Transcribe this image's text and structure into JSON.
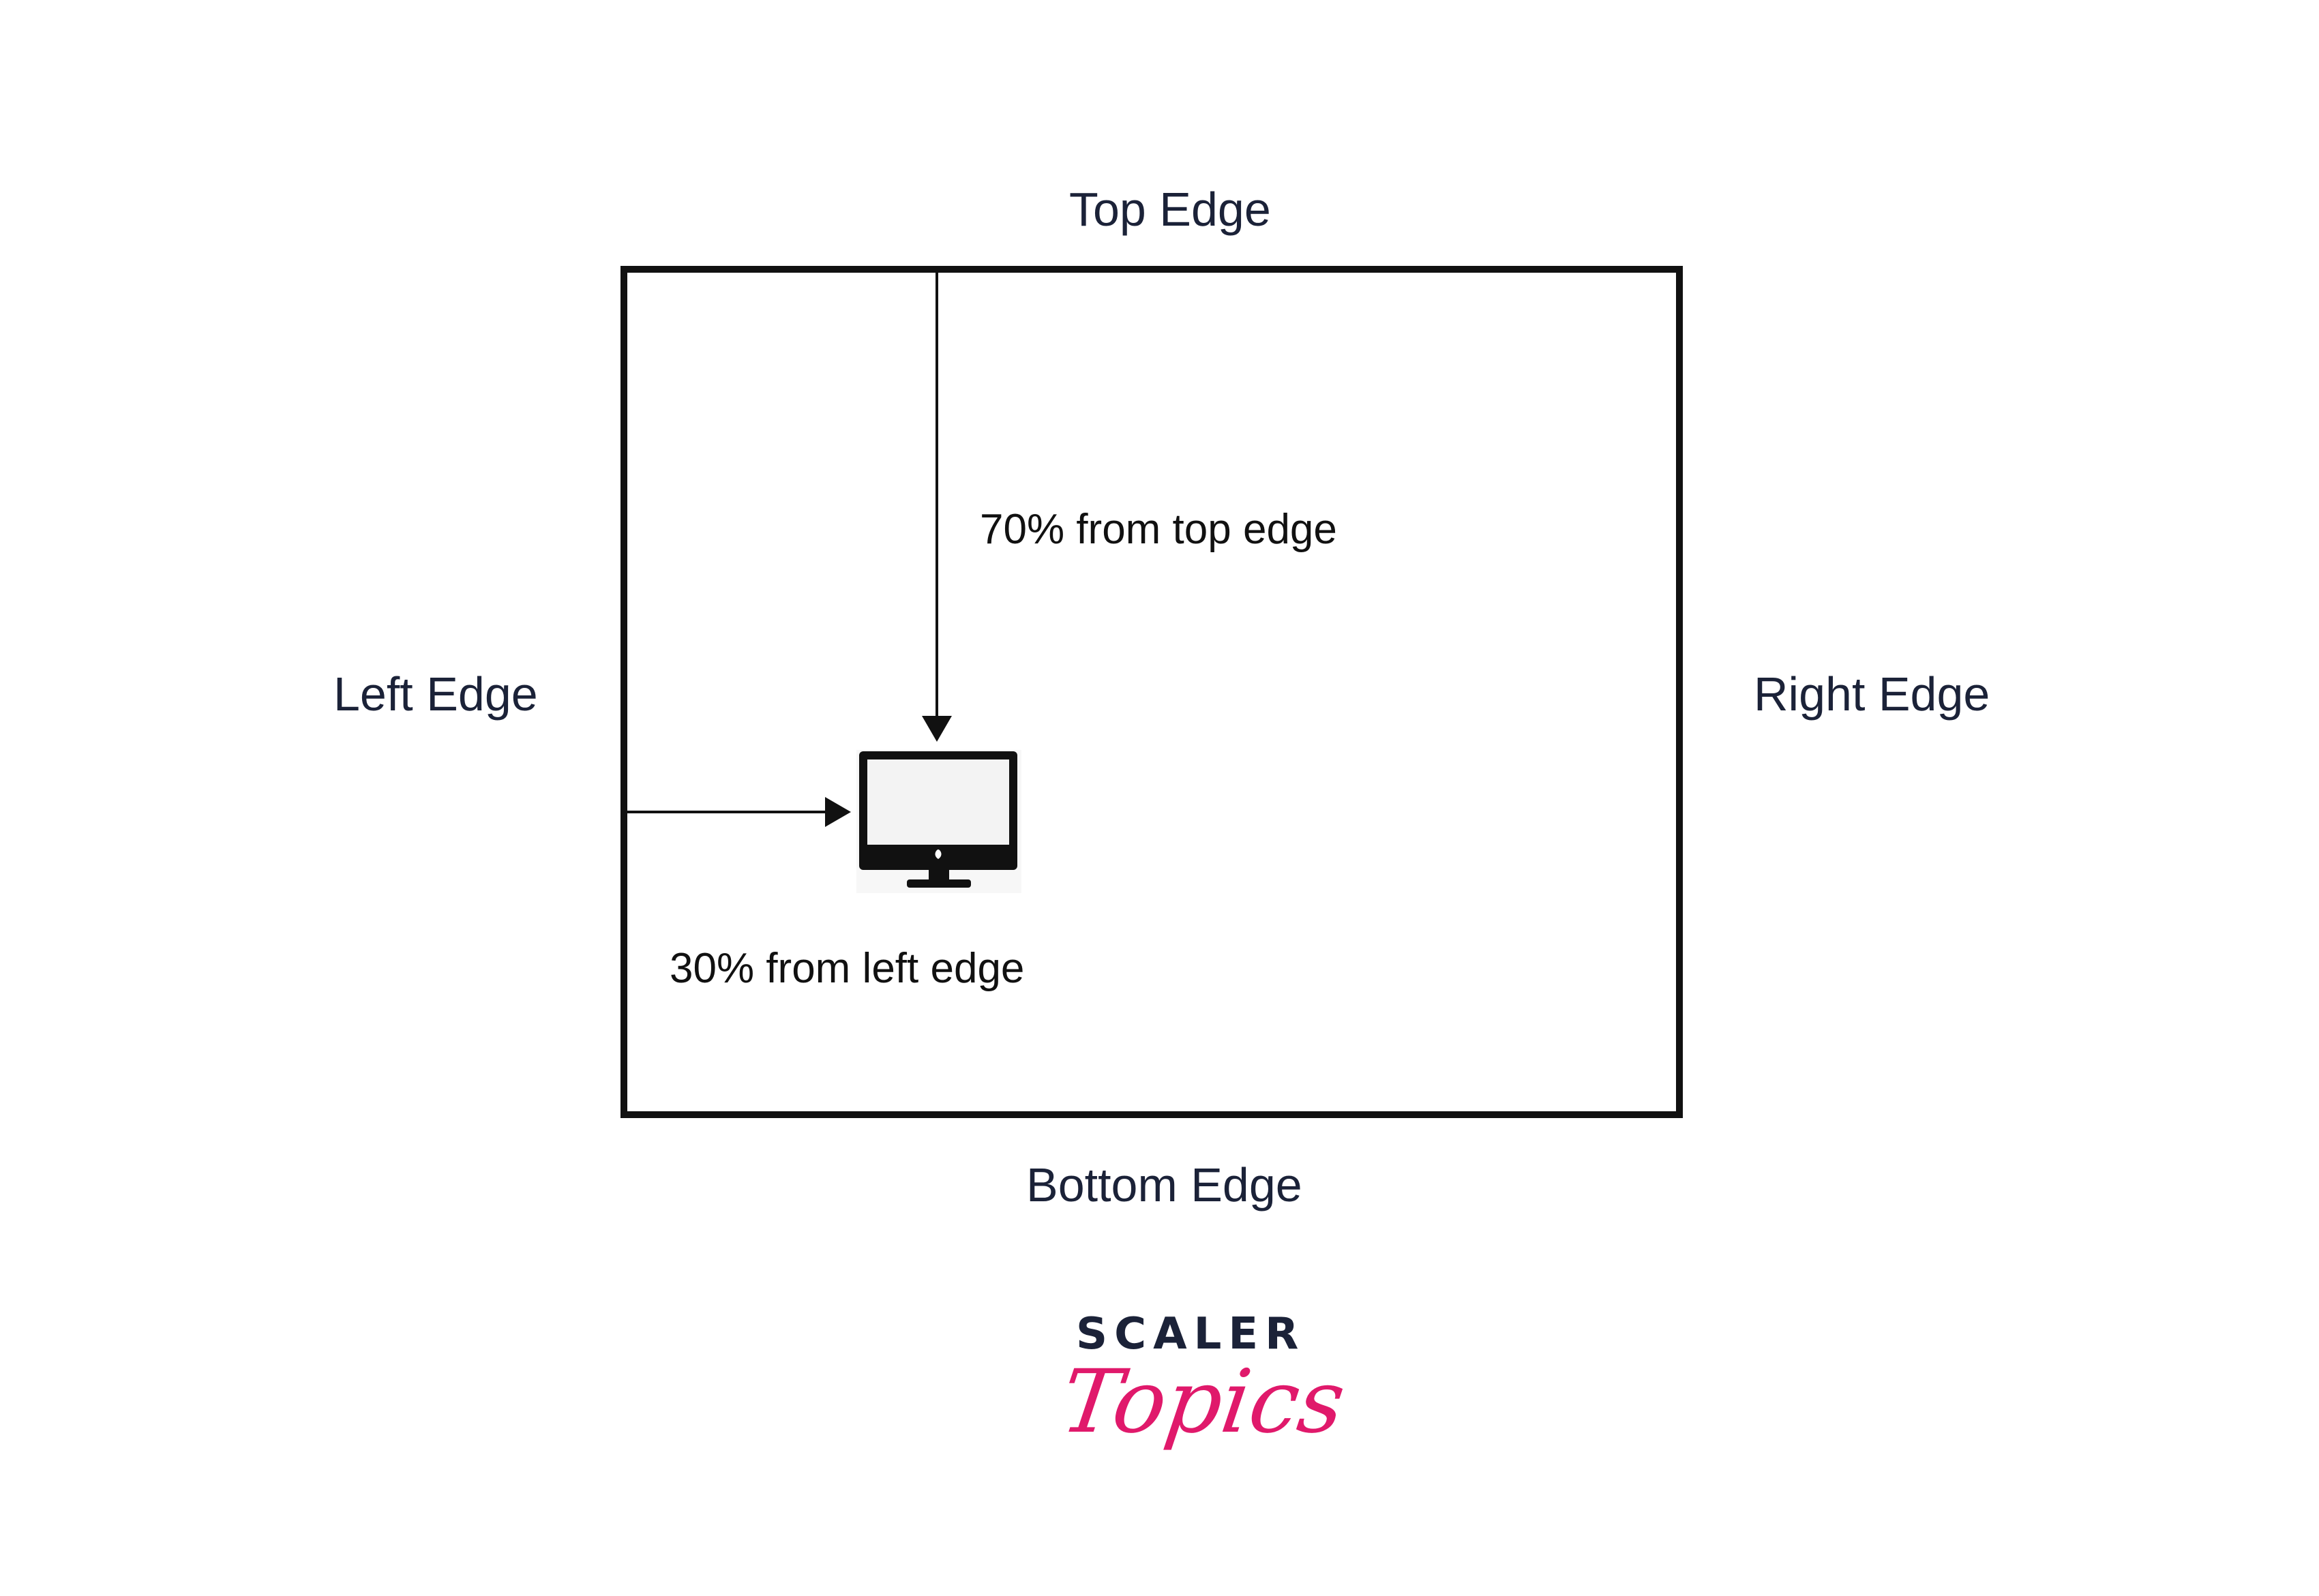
{
  "labels": {
    "top_edge": "Top Edge",
    "left_edge": "Left Edge",
    "right_edge": "Right Edge",
    "bottom_edge": "Bottom Edge",
    "top_annotation": "70% from top edge",
    "left_annotation": "30% from left edge"
  },
  "icons": {
    "device": "desktop-monitor-icon"
  },
  "logo": {
    "word": "SCALER",
    "script": "Topics",
    "colors": {
      "word": "#1b2238",
      "script": "#e0196b"
    }
  },
  "colors": {
    "text": "#1b2238",
    "stroke": "#111111",
    "screen": "#f3f3f3"
  }
}
